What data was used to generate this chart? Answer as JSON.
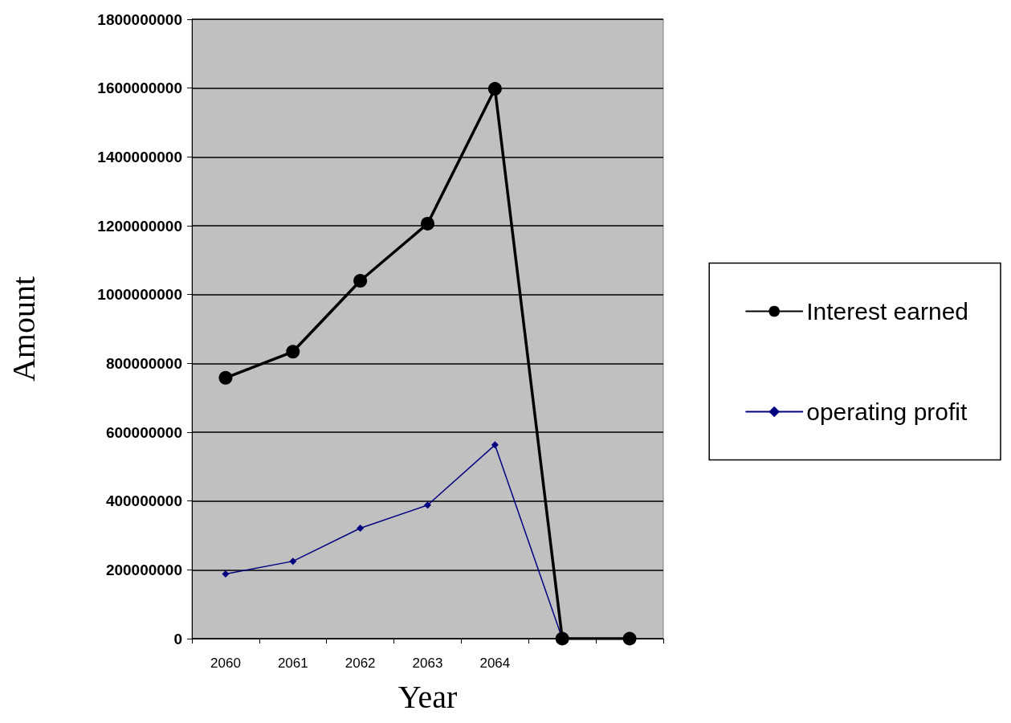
{
  "chart_data": {
    "type": "line",
    "xlabel": "Year",
    "ylabel": "Amount",
    "categories": [
      "2060",
      "2061",
      "2062",
      "2063",
      "2064",
      null,
      null
    ],
    "series": [
      {
        "name": "Interest earned",
        "color": "#000000",
        "marker": "circle",
        "values": [
          758000000,
          834000000,
          1040000000,
          1206000000,
          1598000000,
          0,
          0
        ]
      },
      {
        "name": "operating profit",
        "color": "#000080",
        "marker": "diamond",
        "values": [
          188000000,
          225000000,
          321000000,
          388000000,
          563000000,
          0,
          null
        ]
      }
    ],
    "ylim": [
      0,
      1800000000
    ],
    "yticks": [
      0,
      200000000,
      400000000,
      600000000,
      800000000,
      1000000000,
      1200000000,
      1400000000,
      1600000000,
      1800000000
    ],
    "grid": "y",
    "legend": "right",
    "line_style": "solid"
  }
}
